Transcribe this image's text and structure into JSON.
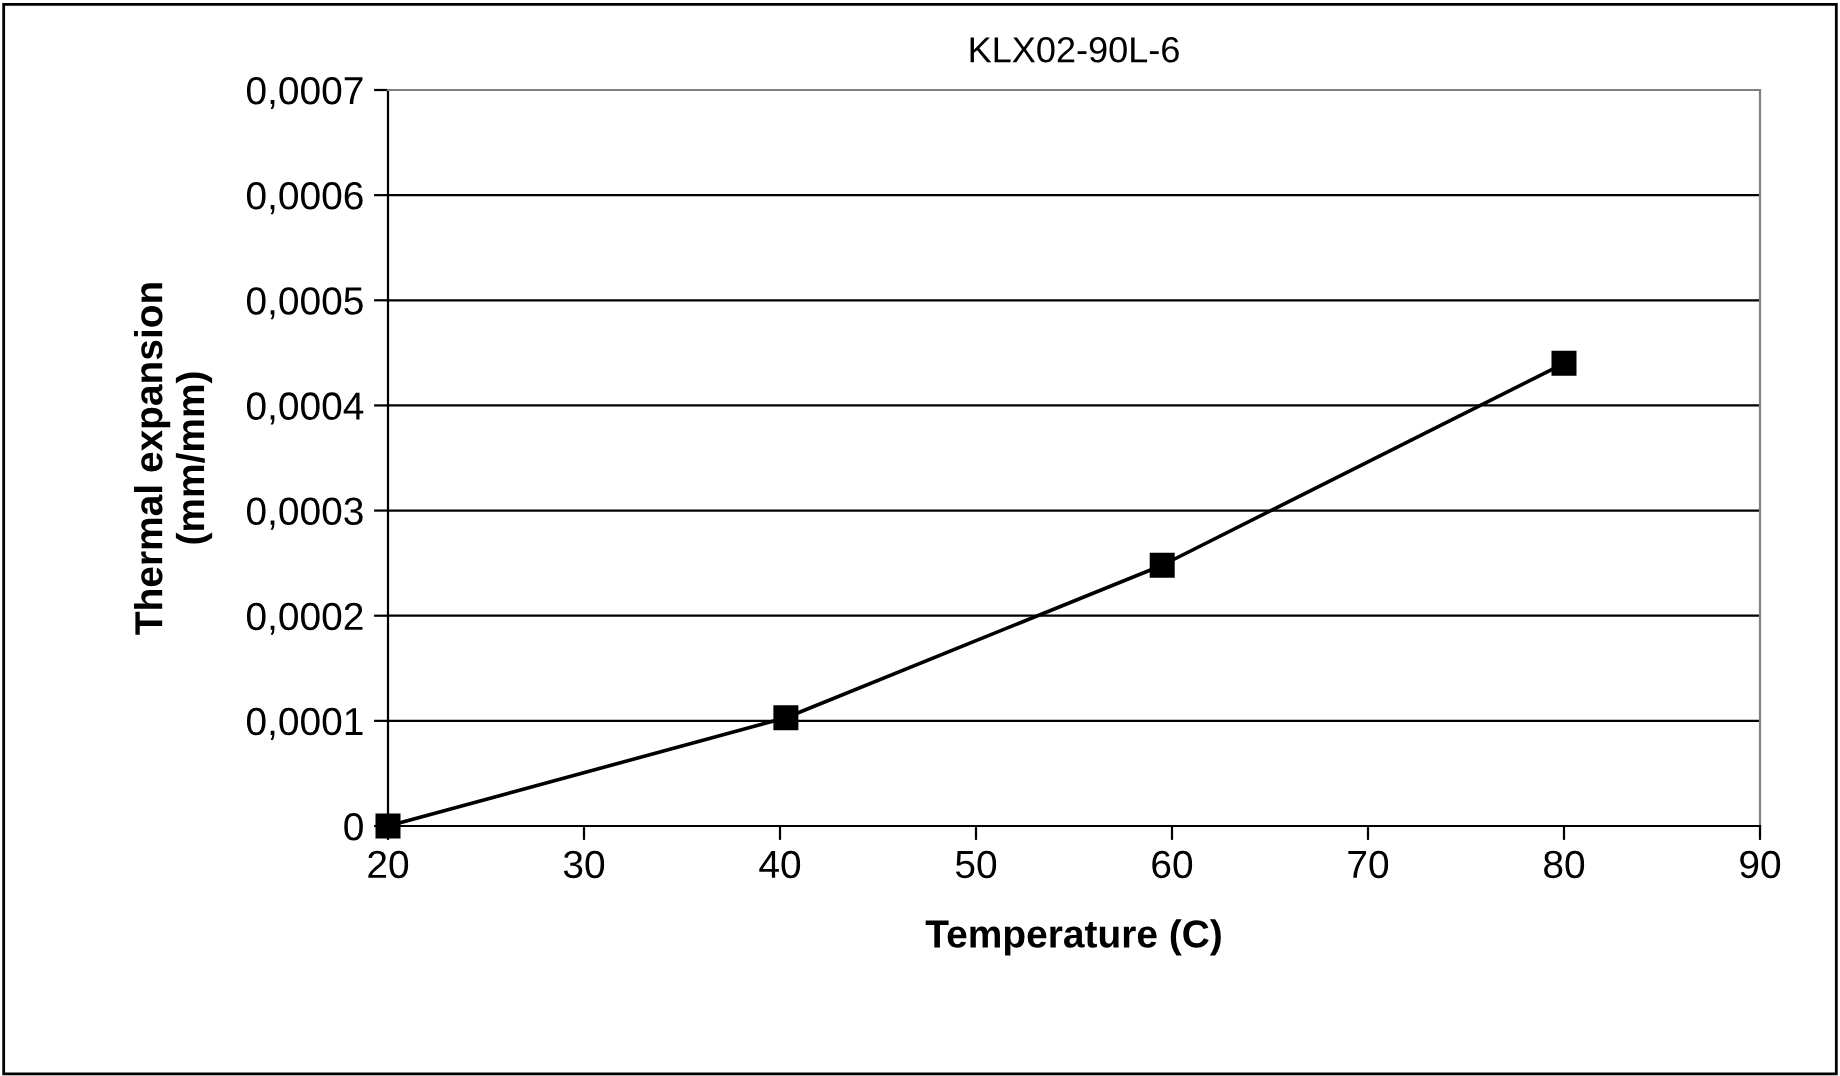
{
  "chart_data": {
    "type": "line",
    "title": "KLX02-90L-6",
    "xlabel": "Temperature (C)",
    "ylabel": "Thermal expansion\n(mm/mm)",
    "x": [
      20,
      40.3,
      59.5,
      80
    ],
    "series": [
      {
        "color": "#000000",
        "values": [
          0,
          0.000103,
          0.000248,
          0.00044
        ]
      }
    ],
    "xlim": [
      20,
      90
    ],
    "xticks": [
      20,
      30,
      40,
      50,
      60,
      70,
      80,
      90
    ],
    "ylim": [
      0,
      0.0007
    ],
    "yticks": [
      0,
      {
        "value": 0.0001,
        "label": "0,0001"
      },
      {
        "value": 0.0002,
        "label": "0,0002"
      },
      {
        "value": 0.0003,
        "label": "0,0003"
      },
      {
        "value": 0.0004,
        "label": "0,0004"
      },
      {
        "value": 0.0005,
        "label": "0,0005"
      },
      {
        "value": 0.0006,
        "label": "0,0006"
      },
      {
        "value": 0.0007,
        "label": "0,0007"
      }
    ],
    "grid": "y",
    "marker": "square",
    "line_style": "solid"
  }
}
